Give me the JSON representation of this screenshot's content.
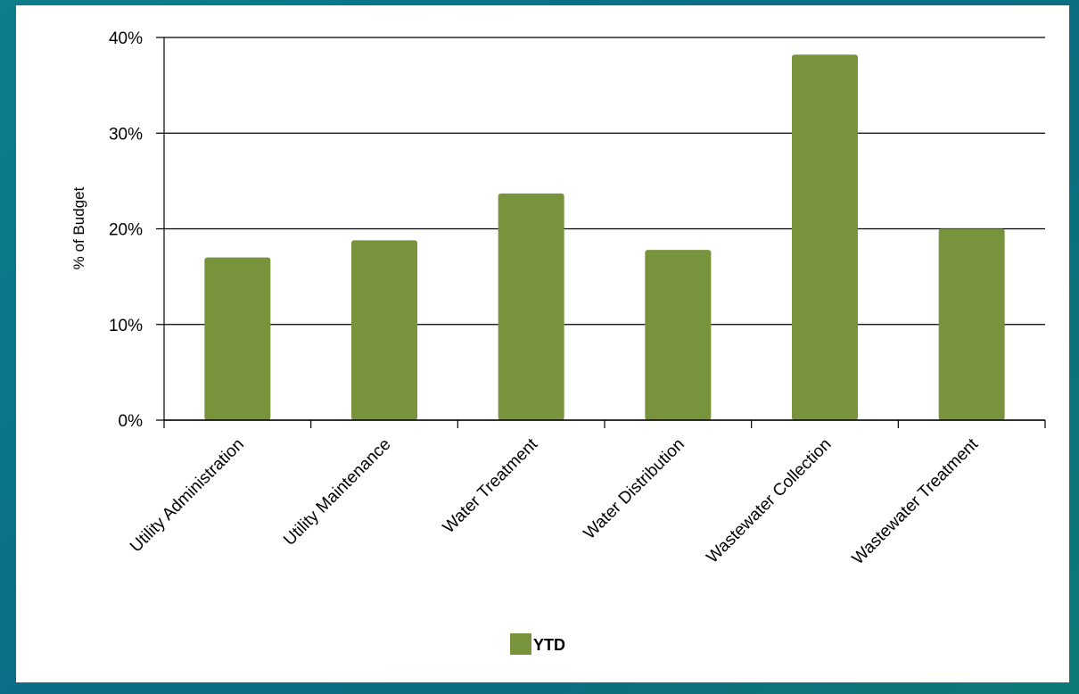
{
  "chart_data": {
    "type": "bar",
    "title": "",
    "xlabel": "",
    "ylabel": "% of Budget",
    "categories": [
      "Utility Administration",
      "Utility Maintenance",
      "Water Treatment",
      "Water Distribution",
      "Wastewater Collection",
      "Wastewater Treatment"
    ],
    "series": [
      {
        "name": "YTD",
        "values": [
          17.0,
          18.8,
          23.7,
          17.8,
          38.2,
          20.0
        ],
        "color": "#77933c"
      }
    ],
    "ylim": [
      0,
      40
    ],
    "yticks": [
      0,
      10,
      20,
      30,
      40
    ],
    "ytick_labels": [
      "0%",
      "10%",
      "20%",
      "30%",
      "40%"
    ],
    "grid": true,
    "legend_position": "bottom"
  }
}
